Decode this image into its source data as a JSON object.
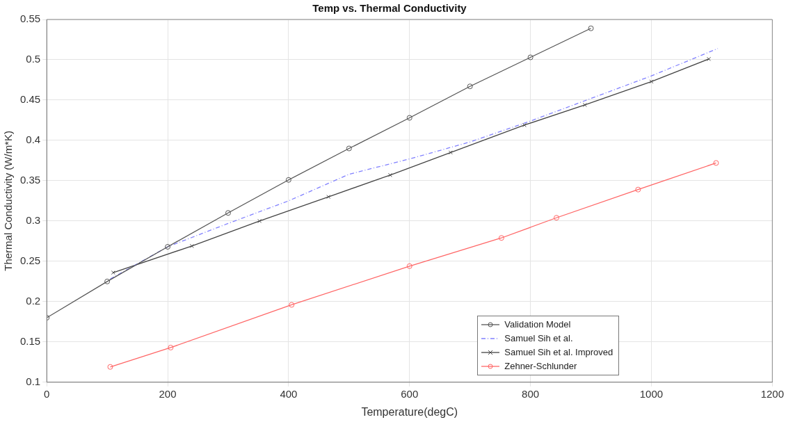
{
  "chart_data": {
    "type": "line",
    "title": "Temp vs. Thermal Conductivity",
    "xlabel": "Temperature(degC)",
    "ylabel": "Thermal Conductivity (W/m*K)",
    "xlim": [
      0,
      1200
    ],
    "xticks": [
      0,
      200,
      400,
      600,
      800,
      1000,
      1200
    ],
    "ylim": [
      0.1,
      0.55
    ],
    "yticks": [
      0.1,
      0.15,
      0.2,
      0.25,
      0.3,
      0.35,
      0.4,
      0.45,
      0.5,
      0.55
    ],
    "grid": true,
    "legend": "bottom right",
    "series": [
      {
        "name": "Validation Model",
        "color": "#555555",
        "marker": "circle",
        "line_style": "solid",
        "x": [
          0,
          100,
          200,
          300,
          400,
          500,
          600,
          700,
          800,
          900
        ],
        "values": [
          0.18,
          0.225,
          0.268,
          0.31,
          0.351,
          0.39,
          0.428,
          0.467,
          0.503,
          0.539
        ]
      },
      {
        "name": "Samuel Sih et al.",
        "color": "#8080ff",
        "marker": "none",
        "line_style": "dashed",
        "x": [
          105,
          200,
          300,
          400,
          500,
          600,
          700,
          800,
          900,
          1000,
          1110
        ],
        "values": [
          0.228,
          0.268,
          0.297,
          0.325,
          0.358,
          0.377,
          0.398,
          0.424,
          0.452,
          0.48,
          0.514
        ]
      },
      {
        "name": "Samuel Sih et al. Improved",
        "color": "#444444",
        "marker": "cross",
        "line_style": "solid",
        "x": [
          110,
          240,
          352,
          466,
          568,
          668,
          790,
          890,
          1000,
          1095
        ],
        "values": [
          0.236,
          0.269,
          0.3,
          0.33,
          0.357,
          0.385,
          0.419,
          0.444,
          0.473,
          0.501
        ]
      },
      {
        "name": "Zehner-Schlunder",
        "color": "#ff6666",
        "marker": "circle",
        "line_style": "solid",
        "x": [
          105,
          205,
          405,
          600,
          752,
          843,
          978,
          1107
        ],
        "values": [
          0.119,
          0.143,
          0.196,
          0.244,
          0.279,
          0.304,
          0.339,
          0.372
        ]
      }
    ]
  }
}
